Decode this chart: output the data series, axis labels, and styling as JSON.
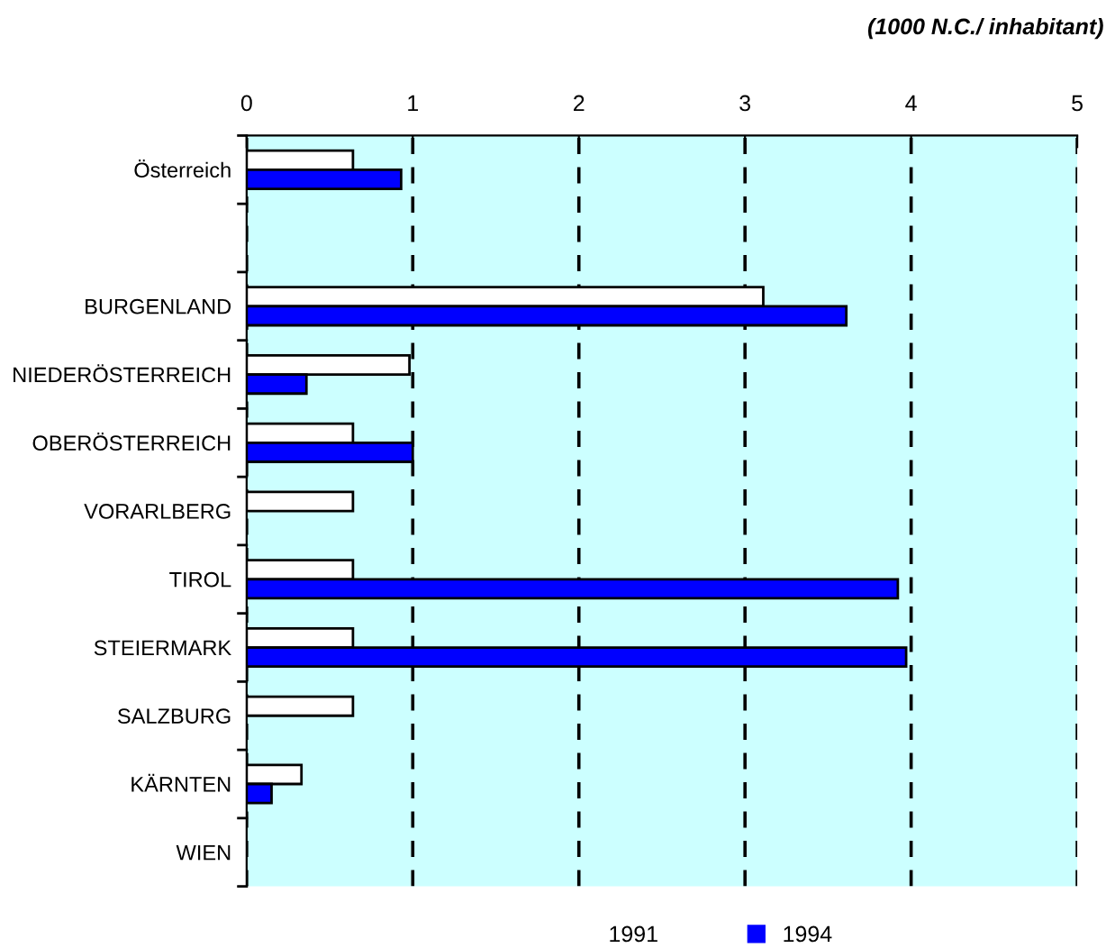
{
  "chart_data": {
    "type": "bar",
    "orientation": "horizontal",
    "xlabel": "(1000 N.C./ inhabitant)",
    "categories": [
      "Österreich",
      null,
      "BURGENLAND",
      "NIEDERÖSTERREICH",
      "OBERÖSTERREICH",
      "VORARLBERG",
      "TIROL",
      "STEIERMARK",
      "SALZBURG",
      "KÄRNTEN",
      "WIEN"
    ],
    "series": [
      {
        "name": "1991",
        "color": "#ffffff",
        "values": [
          0.64,
          null,
          3.11,
          0.98,
          0.64,
          0.64,
          0.64,
          0.64,
          0.64,
          0.33,
          null
        ]
      },
      {
        "name": "1994",
        "color": "#0000ff",
        "values": [
          0.93,
          null,
          3.61,
          0.36,
          1.0,
          null,
          3.92,
          3.97,
          null,
          0.15,
          null
        ]
      }
    ],
    "xlim": [
      0,
      5
    ],
    "xticks": [
      0,
      1,
      2,
      3,
      4,
      5
    ],
    "grid": "x",
    "line_style": "dashed",
    "legend": "bottom"
  }
}
